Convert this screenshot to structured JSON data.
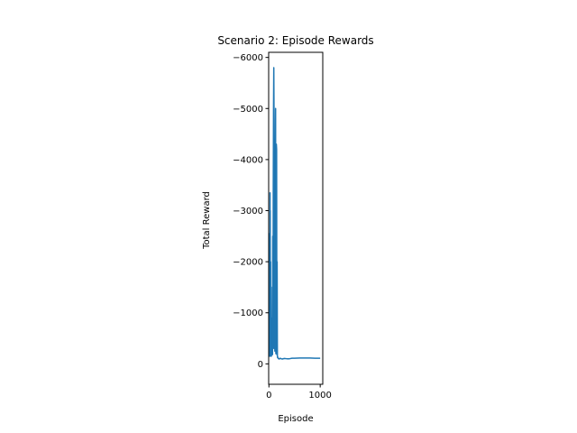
{
  "chart_data": {
    "type": "line",
    "title": "Scenario 2: Episode Rewards",
    "xlabel": "Episode",
    "ylabel": "Total Reward",
    "xlim": [
      -5,
      1050
    ],
    "ylim": [
      400,
      -6100
    ],
    "y_inverted": true,
    "grid": false,
    "line_color": "#1f77b4",
    "xticks": [
      0,
      1000
    ],
    "xtick_labels": [
      "0",
      "1000"
    ],
    "yticks": [
      0,
      -1000,
      -2000,
      -3000,
      -4000,
      -5000,
      -6000
    ],
    "ytick_labels": [
      "0",
      "−1000",
      "−2000",
      "−3000",
      "−4000",
      "−5000",
      "−6000"
    ],
    "series": [
      {
        "x": [
          0,
          2,
          4,
          6,
          8,
          10,
          12,
          14,
          16,
          18,
          20,
          22,
          24,
          26,
          28,
          30,
          32,
          34,
          36,
          38,
          40,
          42,
          44,
          46,
          48,
          50,
          55,
          60,
          65,
          70,
          75,
          80,
          85,
          90,
          95,
          100,
          105,
          110,
          115,
          120,
          125,
          130,
          135,
          140,
          145,
          150,
          155,
          160,
          165,
          170,
          175,
          180,
          190,
          200,
          220,
          240,
          260,
          300,
          350,
          400,
          450,
          500,
          600,
          700,
          800,
          900,
          1000
        ],
        "y": [
          -200,
          -2550,
          -300,
          -1800,
          -150,
          -1200,
          -400,
          -900,
          -150,
          -2200,
          -250,
          -3350,
          -500,
          -3000,
          -200,
          -1500,
          -600,
          -2000,
          -150,
          -900,
          -180,
          -700,
          -160,
          -400,
          -150,
          -800,
          -300,
          -200,
          -1500,
          -180,
          -2500,
          -300,
          -3500,
          -5000,
          -5800,
          -4800,
          -300,
          -2000,
          -250,
          -3800,
          -4000,
          -5000,
          -200,
          -1500,
          -4300,
          -4200,
          -180,
          -2000,
          -150,
          -120,
          -130,
          -110,
          -100,
          -95,
          -110,
          -100,
          -95,
          -105,
          -100,
          -100,
          -110,
          -110,
          -115,
          -115,
          -115,
          -110,
          -110
        ]
      }
    ]
  }
}
